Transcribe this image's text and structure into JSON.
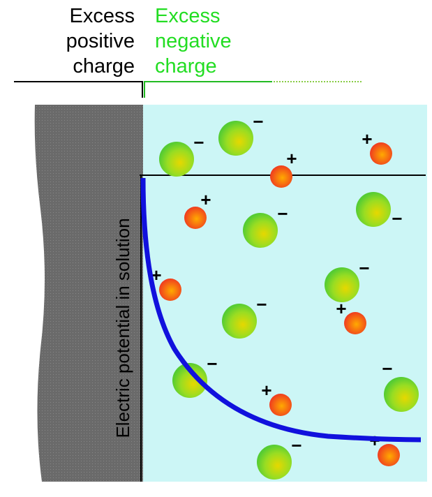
{
  "header": {
    "left": [
      "Excess",
      "positive",
      "charge"
    ],
    "right": [
      "Excess",
      "negative",
      "charge"
    ]
  },
  "axis_label": "Electric potential in solution",
  "ion_signs": {
    "cation": "+",
    "anion": "−"
  }
}
